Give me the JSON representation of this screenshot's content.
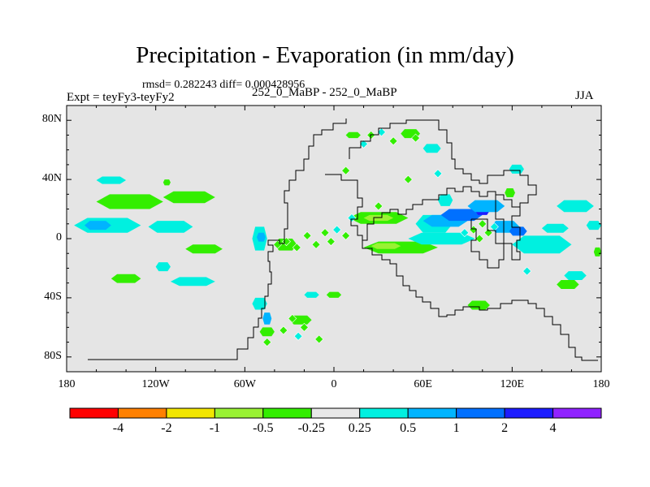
{
  "chart_data": {
    "type": "heatmap",
    "title": "Precipitation - Evaporation (in mm/day)",
    "stats_text": "rmsd= 0.282243  diff= 0.000428956",
    "left_label": "Expt = teyFy3-teyFy2",
    "center_label": "252_0_MaBP - 252_0_MaBP",
    "right_label": "JJA",
    "xlim": [
      -180,
      180
    ],
    "ylim": [
      -90,
      90
    ],
    "x_ticks": [
      {
        "value": -180,
        "label": "180"
      },
      {
        "value": -120,
        "label": "120W"
      },
      {
        "value": -60,
        "label": "60W"
      },
      {
        "value": 0,
        "label": "0"
      },
      {
        "value": 60,
        "label": "60E"
      },
      {
        "value": 120,
        "label": "120E"
      },
      {
        "value": 180,
        "label": "180"
      }
    ],
    "y_ticks": [
      {
        "value": 80,
        "label": "80N"
      },
      {
        "value": 40,
        "label": "40N"
      },
      {
        "value": 0,
        "label": "0"
      },
      {
        "value": -40,
        "label": "40S"
      },
      {
        "value": -80,
        "label": "80S"
      }
    ],
    "colorbar": {
      "colors": [
        "#ff0000",
        "#ff8000",
        "#f2e600",
        "#99f233",
        "#33ee00",
        "#e8e8e8",
        "#00f0e0",
        "#00b4ff",
        "#0070ff",
        "#1c1cff",
        "#9022ff"
      ],
      "labels": [
        "-4",
        "-2",
        "-1",
        "-0.5",
        "-0.25",
        "0.25",
        "0.5",
        "1",
        "2",
        "4"
      ]
    },
    "background_color": "#e5e5e5",
    "regions": [
      {
        "class": 6,
        "lon": [
          -175,
          -130
        ],
        "lat": [
          4,
          14
        ]
      },
      {
        "class": 7,
        "lon": [
          -168,
          -150
        ],
        "lat": [
          6,
          12
        ]
      },
      {
        "class": 4,
        "lon": [
          -160,
          -115
        ],
        "lat": [
          20,
          30
        ]
      },
      {
        "class": 6,
        "lon": [
          -160,
          -140
        ],
        "lat": [
          37,
          42
        ]
      },
      {
        "class": 4,
        "lon": [
          -115,
          -80
        ],
        "lat": [
          24,
          32
        ]
      },
      {
        "class": 6,
        "lon": [
          -125,
          -95
        ],
        "lat": [
          4,
          12
        ]
      },
      {
        "class": 6,
        "lon": [
          -110,
          -80
        ],
        "lat": [
          -32,
          -26
        ]
      },
      {
        "class": 4,
        "lon": [
          -100,
          -75
        ],
        "lat": [
          -10,
          -4
        ]
      },
      {
        "class": 4,
        "lon": [
          -150,
          -130
        ],
        "lat": [
          -30,
          -24
        ]
      },
      {
        "class": 6,
        "lon": [
          -55,
          -45
        ],
        "lat": [
          -8,
          8
        ]
      },
      {
        "class": 7,
        "lon": [
          -52,
          -46
        ],
        "lat": [
          -2,
          4
        ]
      },
      {
        "class": 4,
        "lon": [
          -40,
          -25
        ],
        "lat": [
          -8,
          0
        ]
      },
      {
        "class": 6,
        "lon": [
          -55,
          -45
        ],
        "lat": [
          -48,
          -40
        ]
      },
      {
        "class": 7,
        "lon": [
          -48,
          -42
        ],
        "lat": [
          -58,
          -50
        ]
      },
      {
        "class": 4,
        "lon": [
          -50,
          -40
        ],
        "lat": [
          -66,
          -60
        ]
      },
      {
        "class": 4,
        "lon": [
          -30,
          -15
        ],
        "lat": [
          -58,
          -52
        ]
      },
      {
        "class": 4,
        "lon": [
          10,
          50
        ],
        "lat": [
          10,
          18
        ]
      },
      {
        "class": 3,
        "lon": [
          20,
          40
        ],
        "lat": [
          12,
          16
        ]
      },
      {
        "class": 4,
        "lon": [
          20,
          70
        ],
        "lat": [
          -10,
          -2
        ]
      },
      {
        "class": 3,
        "lon": [
          25,
          45
        ],
        "lat": [
          -7,
          -3
        ]
      },
      {
        "class": 6,
        "lon": [
          55,
          80
        ],
        "lat": [
          4,
          16
        ]
      },
      {
        "class": 7,
        "lon": [
          60,
          90
        ],
        "lat": [
          8,
          16
        ]
      },
      {
        "class": 8,
        "lon": [
          72,
          100
        ],
        "lat": [
          12,
          20
        ]
      },
      {
        "class": 9,
        "lon": [
          95,
          105
        ],
        "lat": [
          16,
          22
        ]
      },
      {
        "class": 7,
        "lon": [
          90,
          115
        ],
        "lat": [
          18,
          26
        ]
      },
      {
        "class": 6,
        "lon": [
          50,
          95
        ],
        "lat": [
          -4,
          4
        ]
      },
      {
        "class": 7,
        "lon": [
          105,
          125
        ],
        "lat": [
          4,
          12
        ]
      },
      {
        "class": 8,
        "lon": [
          118,
          130
        ],
        "lat": [
          2,
          8
        ]
      },
      {
        "class": 6,
        "lon": [
          120,
          160
        ],
        "lat": [
          -10,
          2
        ]
      },
      {
        "class": 6,
        "lon": [
          150,
          175
        ],
        "lat": [
          18,
          26
        ]
      },
      {
        "class": 4,
        "lon": [
          150,
          165
        ],
        "lat": [
          -34,
          -28
        ]
      },
      {
        "class": 6,
        "lon": [
          155,
          170
        ],
        "lat": [
          -28,
          -22
        ]
      },
      {
        "class": 4,
        "lon": [
          8,
          18
        ],
        "lat": [
          68,
          72
        ]
      },
      {
        "class": 6,
        "lon": [
          60,
          72
        ],
        "lat": [
          58,
          64
        ]
      },
      {
        "class": 6,
        "lon": [
          70,
          80
        ],
        "lat": [
          22,
          30
        ]
      },
      {
        "class": 4,
        "lon": [
          115,
          122
        ],
        "lat": [
          28,
          34
        ]
      },
      {
        "class": 6,
        "lon": [
          118,
          128
        ],
        "lat": [
          44,
          50
        ]
      },
      {
        "class": 4,
        "lon": [
          -115,
          -110
        ],
        "lat": [
          36,
          40
        ]
      },
      {
        "class": 6,
        "lon": [
          -120,
          -110
        ],
        "lat": [
          -22,
          -16
        ]
      },
      {
        "class": 4,
        "lon": [
          175,
          180
        ],
        "lat": [
          -12,
          -6
        ]
      },
      {
        "class": 6,
        "lon": [
          170,
          180
        ],
        "lat": [
          6,
          12
        ]
      },
      {
        "class": 4,
        "lon": [
          45,
          58
        ],
        "lat": [
          68,
          74
        ]
      },
      {
        "class": 6,
        "lon": [
          -20,
          -10
        ],
        "lat": [
          -40,
          -36
        ]
      },
      {
        "class": 4,
        "lon": [
          -5,
          5
        ],
        "lat": [
          -40,
          -36
        ]
      },
      {
        "class": 6,
        "lon": [
          140,
          158
        ],
        "lat": [
          4,
          10
        ]
      },
      {
        "class": 4,
        "lon": [
          90,
          105
        ],
        "lat": [
          -48,
          -42
        ]
      }
    ],
    "diamonds": [
      {
        "class": 4,
        "lon": -38,
        "lat": -4
      },
      {
        "class": 4,
        "lon": -32,
        "lat": -2
      },
      {
        "class": 4,
        "lon": -25,
        "lat": -6
      },
      {
        "class": 4,
        "lon": -18,
        "lat": 2
      },
      {
        "class": 4,
        "lon": -12,
        "lat": -4
      },
      {
        "class": 4,
        "lon": -6,
        "lat": 4
      },
      {
        "class": 4,
        "lon": -2,
        "lat": -2
      },
      {
        "class": 6,
        "lon": 2,
        "lat": 6
      },
      {
        "class": 4,
        "lon": 8,
        "lat": 2
      },
      {
        "class": 4,
        "lon": -28,
        "lat": -54
      },
      {
        "class": 4,
        "lon": -20,
        "lat": -60
      },
      {
        "class": 4,
        "lon": -34,
        "lat": -62
      },
      {
        "class": 6,
        "lon": -24,
        "lat": -66
      },
      {
        "class": 4,
        "lon": 25,
        "lat": 70
      },
      {
        "class": 6,
        "lon": 32,
        "lat": 72
      },
      {
        "class": 4,
        "lon": 40,
        "lat": 66
      },
      {
        "class": 6,
        "lon": 20,
        "lat": 64
      },
      {
        "class": 4,
        "lon": 55,
        "lat": 68
      },
      {
        "class": 4,
        "lon": 100,
        "lat": 10
      },
      {
        "class": 4,
        "lon": 104,
        "lat": 4
      },
      {
        "class": 4,
        "lon": 98,
        "lat": 0
      },
      {
        "class": 6,
        "lon": 108,
        "lat": 8
      },
      {
        "class": 4,
        "lon": 94,
        "lat": 6
      },
      {
        "class": 6,
        "lon": 88,
        "lat": 4
      },
      {
        "class": 4,
        "lon": 30,
        "lat": 22
      },
      {
        "class": 6,
        "lon": 12,
        "lat": 14
      },
      {
        "class": 4,
        "lon": 50,
        "lat": 40
      },
      {
        "class": 4,
        "lon": 8,
        "lat": 46
      },
      {
        "class": 4,
        "lon": -10,
        "lat": -68
      },
      {
        "class": 6,
        "lon": 70,
        "lat": 44
      },
      {
        "class": 4,
        "lon": -45,
        "lat": -70
      },
      {
        "class": 6,
        "lon": 130,
        "lat": -22
      }
    ]
  }
}
